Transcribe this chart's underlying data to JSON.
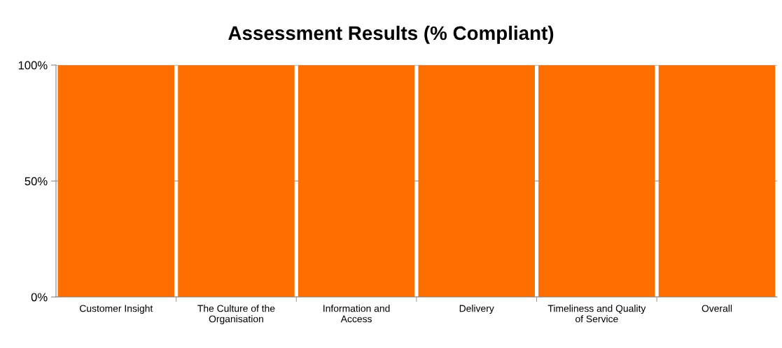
{
  "chart_data": {
    "type": "bar",
    "title": "Assessment Results (% Compliant)",
    "categories": [
      "Customer Insight",
      "The Culture of the\nOrganisation",
      "Information and\nAccess",
      "Delivery",
      "Timeliness and Quality\nof Service",
      "Overall"
    ],
    "values": [
      100,
      100,
      100,
      100,
      100,
      100
    ],
    "color": "#ff6f00",
    "ylim": [
      0,
      100
    ],
    "yticks": [
      {
        "value": 0,
        "label": "0%"
      },
      {
        "value": 50,
        "label": "50%"
      },
      {
        "value": 100,
        "label": "100%"
      }
    ],
    "grid": "y"
  }
}
